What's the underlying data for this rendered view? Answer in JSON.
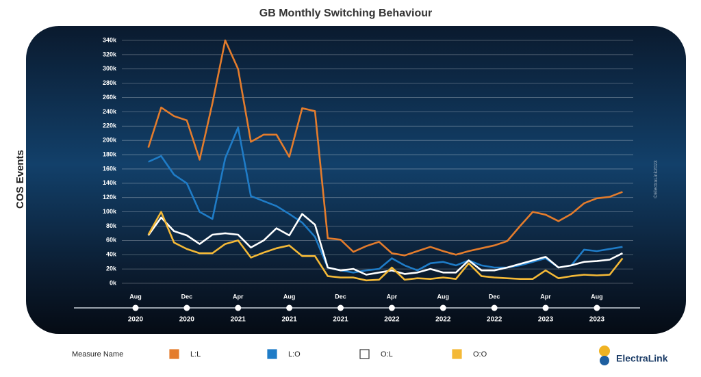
{
  "chart_data": {
    "type": "line",
    "title": "GB Monthly Switching Behaviour",
    "y_label": "COS Events",
    "watermark": "©ElectraLink2023",
    "legend_title": "Measure Name",
    "logo": "ElectraLink",
    "grid": true,
    "x": [
      "2020-09",
      "2020-10",
      "2020-11",
      "2020-12",
      "2021-01",
      "2021-02",
      "2021-03",
      "2021-04",
      "2021-05",
      "2021-06",
      "2021-07",
      "2021-08",
      "2021-09",
      "2021-10",
      "2021-11",
      "2021-12",
      "2022-01",
      "2022-02",
      "2022-03",
      "2022-04",
      "2022-05",
      "2022-06",
      "2022-07",
      "2022-08",
      "2022-09",
      "2022-10",
      "2022-11",
      "2022-12",
      "2023-01",
      "2023-02",
      "2023-03",
      "2023-04",
      "2023-05",
      "2023-06",
      "2023-07",
      "2023-08",
      "2023-09",
      "2023-10"
    ],
    "xticks": [
      {
        "value": "2020-08",
        "label": "Aug",
        "year": "2020"
      },
      {
        "value": "2020-12",
        "label": "Dec",
        "year": "2020"
      },
      {
        "value": "2021-04",
        "label": "Apr",
        "year": "2021"
      },
      {
        "value": "2021-08",
        "label": "Aug",
        "year": "2021"
      },
      {
        "value": "2021-12",
        "label": "Dec",
        "year": "2021"
      },
      {
        "value": "2022-04",
        "label": "Apr",
        "year": "2022"
      },
      {
        "value": "2022-08",
        "label": "Aug",
        "year": "2022"
      },
      {
        "value": "2022-12",
        "label": "Dec",
        "year": "2022"
      },
      {
        "value": "2023-04",
        "label": "Apr",
        "year": "2023"
      },
      {
        "value": "2023-08",
        "label": "Aug",
        "year": "2023"
      }
    ],
    "ylim": [
      0,
      340
    ],
    "yticks": [
      {
        "value": 0,
        "label": "0k"
      },
      {
        "value": 20,
        "label": "20k"
      },
      {
        "value": 40,
        "label": "40k"
      },
      {
        "value": 60,
        "label": "60k"
      },
      {
        "value": 80,
        "label": "80k"
      },
      {
        "value": 100,
        "label": "100k"
      },
      {
        "value": 120,
        "label": "120k"
      },
      {
        "value": 140,
        "label": "140k"
      },
      {
        "value": 160,
        "label": "160k"
      },
      {
        "value": 180,
        "label": "180k"
      },
      {
        "value": 200,
        "label": "200k"
      },
      {
        "value": 220,
        "label": "220k"
      },
      {
        "value": 240,
        "label": "240k"
      },
      {
        "value": 260,
        "label": "260k"
      },
      {
        "value": 280,
        "label": "280k"
      },
      {
        "value": 300,
        "label": "300k"
      },
      {
        "value": 320,
        "label": "320k"
      },
      {
        "value": 340,
        "label": "340k"
      }
    ],
    "series": [
      {
        "name": "L:L",
        "color": "#e47c2c",
        "values": [
          190,
          246,
          234,
          228,
          173,
          252,
          340,
          300,
          198,
          208,
          208,
          177,
          245,
          241,
          63,
          61,
          44,
          52,
          58,
          42,
          39,
          45,
          51,
          45,
          40,
          45,
          49,
          53,
          59,
          80,
          100,
          96,
          87,
          97,
          112,
          119,
          121,
          128
        ]
      },
      {
        "name": "L:O",
        "color": "#1f7cc7",
        "values": [
          170,
          178,
          152,
          140,
          100,
          90,
          175,
          218,
          122,
          115,
          108,
          97,
          85,
          65,
          22,
          18,
          15,
          18,
          20,
          35,
          25,
          18,
          28,
          30,
          25,
          32,
          25,
          22,
          22,
          25,
          30,
          35,
          22,
          25,
          47,
          45,
          48,
          51
        ]
      },
      {
        "name": "O:L",
        "color": "#ffffff",
        "values": [
          67,
          92,
          73,
          67,
          55,
          68,
          70,
          68,
          50,
          60,
          77,
          67,
          97,
          82,
          22,
          18,
          20,
          12,
          15,
          18,
          13,
          15,
          20,
          15,
          15,
          32,
          18,
          18,
          22,
          27,
          32,
          37,
          22,
          25,
          30,
          31,
          33,
          42
        ]
      },
      {
        "name": "O:O",
        "color": "#f4b937",
        "values": [
          68,
          100,
          57,
          48,
          42,
          42,
          55,
          60,
          36,
          43,
          49,
          53,
          38,
          38,
          10,
          8,
          8,
          4,
          5,
          22,
          5,
          7,
          6,
          8,
          6,
          28,
          10,
          8,
          7,
          6,
          6,
          18,
          7,
          10,
          12,
          11,
          12,
          35
        ]
      }
    ]
  }
}
